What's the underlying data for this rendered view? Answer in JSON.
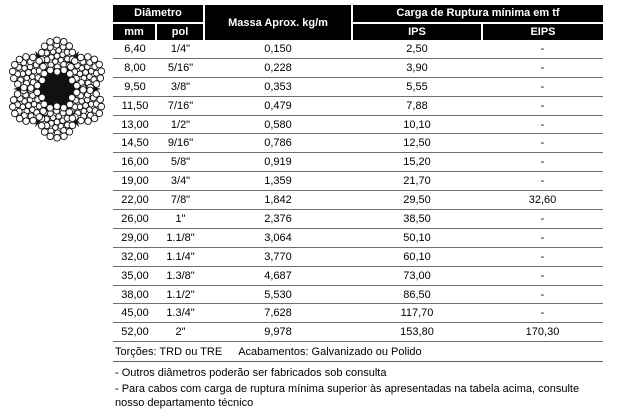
{
  "colors": {
    "header_bg": "#000000",
    "header_text": "#ffffff",
    "row_line": "#6e6e6e",
    "body_text": "#000000"
  },
  "icons": {
    "rope": "wire-rope-cross-section"
  },
  "table": {
    "headers": {
      "diametro": "Diâmetro",
      "mm": "mm",
      "pol": "pol",
      "massa": "Massa Aprox. kg/m",
      "carga": "Carga de Ruptura mínima em tf",
      "ips": "IPS",
      "eips": "EIPS"
    },
    "rows": [
      {
        "mm": "6,40",
        "pol": "1/4\"",
        "massa": "0,150",
        "ips": "2,50",
        "eips": "-"
      },
      {
        "mm": "8,00",
        "pol": "5/16\"",
        "massa": "0,228",
        "ips": "3,90",
        "eips": "-"
      },
      {
        "mm": "9,50",
        "pol": "3/8\"",
        "massa": "0,353",
        "ips": "5,55",
        "eips": "-"
      },
      {
        "mm": "11,50",
        "pol": "7/16\"",
        "massa": "0,479",
        "ips": "7,88",
        "eips": "-"
      },
      {
        "mm": "13,00",
        "pol": "1/2\"",
        "massa": "0,580",
        "ips": "10,10",
        "eips": "-"
      },
      {
        "mm": "14,50",
        "pol": "9/16\"",
        "massa": "0,786",
        "ips": "12,50",
        "eips": "-"
      },
      {
        "mm": "16,00",
        "pol": "5/8\"",
        "massa": "0,919",
        "ips": "15,20",
        "eips": "-"
      },
      {
        "mm": "19,00",
        "pol": "3/4\"",
        "massa": "1,359",
        "ips": "21,70",
        "eips": "-"
      },
      {
        "mm": "22,00",
        "pol": "7/8\"",
        "massa": "1,842",
        "ips": "29,50",
        "eips": "32,60"
      },
      {
        "mm": "26,00",
        "pol": "1\"",
        "massa": "2,376",
        "ips": "38,50",
        "eips": "-"
      },
      {
        "mm": "29,00",
        "pol": "1.1/8\"",
        "massa": "3,064",
        "ips": "50,10",
        "eips": "-"
      },
      {
        "mm": "32,00",
        "pol": "1.1/4\"",
        "massa": "3,770",
        "ips": "60,10",
        "eips": "-"
      },
      {
        "mm": "35,00",
        "pol": "1.3/8\"",
        "massa": "4,687",
        "ips": "73,00",
        "eips": "-"
      },
      {
        "mm": "38,00",
        "pol": "1.1/2\"",
        "massa": "5,530",
        "ips": "86,50",
        "eips": "-"
      },
      {
        "mm": "45,00",
        "pol": "1.3/4\"",
        "massa": "7,628",
        "ips": "117,70",
        "eips": "-"
      },
      {
        "mm": "52,00",
        "pol": "2\"",
        "massa": "9,978",
        "ips": "153,80",
        "eips": "170,30"
      }
    ],
    "footer": {
      "torcoes": "Torções: TRD ou TRE",
      "acabamentos": "Acabamentos: Galvanizado ou Polido"
    }
  },
  "notes": [
    "- Outros diâmetros poderão ser fabricados sob consulta",
    "- Para cabos com carga de ruptura mínima superior às apresentadas na tabela acima, consulte nosso departamento técnico"
  ]
}
